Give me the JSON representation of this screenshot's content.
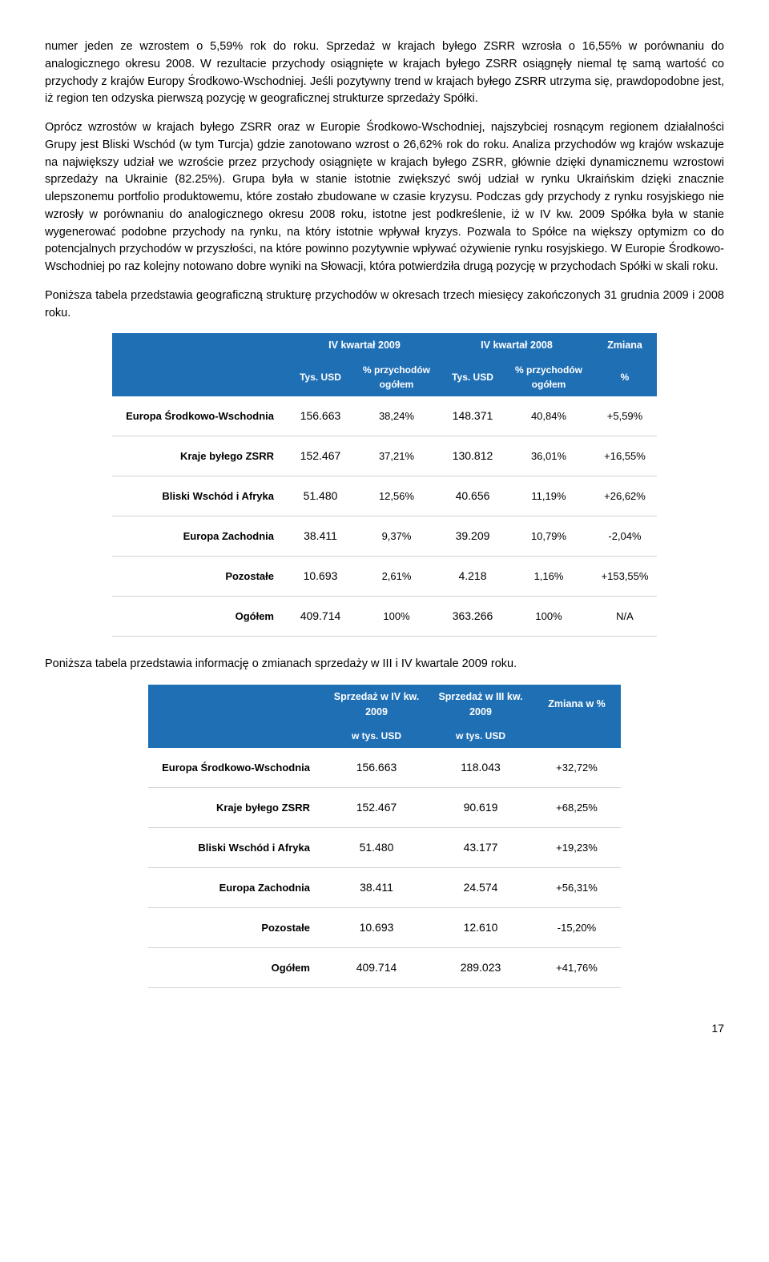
{
  "paragraphs": {
    "p1": "numer jeden ze wzrostem o 5,59% rok do roku. Sprzedaż w krajach byłego ZSRR wzrosła o 16,55% w porównaniu do analogicznego okresu 2008. W rezultacie przychody osiągnięte w krajach byłego ZSRR osiągnęły niemal tę samą wartość co przychody z krajów Europy Środkowo-Wschodniej. Jeśli pozytywny trend w krajach byłego ZSRR utrzyma się, prawdopodobne jest, iż region ten odzyska pierwszą pozycję w geograficznej strukturze sprzedaży Spółki.",
    "p2": "Oprócz wzrostów w krajach byłego ZSRR oraz w Europie Środkowo-Wschodniej, najszybciej rosnącym regionem działalności Grupy jest Bliski Wschód (w tym Turcja) gdzie zanotowano wzrost o 26,62% rok do roku. Analiza przychodów wg krajów wskazuje na największy udział we wzroście przez przychody osiągnięte w krajach byłego ZSRR, głównie dzięki dynamicznemu wzrostowi sprzedaży na Ukrainie (82.25%). Grupa była w stanie istotnie zwiększyć swój udział w rynku Ukraińskim dzięki znacznie ulepszonemu portfolio produktowemu, które zostało zbudowane w czasie kryzysu. Podczas gdy przychody z rynku rosyjskiego nie wzrosły w porównaniu do analogicznego okresu 2008 roku, istotne jest podkreślenie, iż w IV kw. 2009 Spółka była w stanie wygenerować podobne przychody na rynku, na który istotnie wpływał kryzys. Pozwala to Spółce na większy optymizm co do potencjalnych przychodów w przyszłości, na które powinno pozytywnie wpływać ożywienie rynku rosyjskiego. W Europie Środkowo-Wschodniej po raz kolejny notowano dobre wyniki na Słowacji, która potwierdziła drugą pozycję w przychodach Spółki w skali roku.",
    "p3": "Poniższa tabela przedstawia geograficzną strukturę przychodów w okresach trzech miesięcy zakończonych 31 grudnia 2009 i 2008 roku.",
    "p4": "Poniższa tabela przedstawia informację o zmianach sprzedaży w III i IV kwartale 2009 roku."
  },
  "table1": {
    "header_top": {
      "c1": "IV kwartał 2009",
      "c2": "IV kwartał 2008",
      "c3": "Zmiana"
    },
    "header_sub": {
      "tys": "Tys. USD",
      "pct": "% przychodów ogółem",
      "chg": "%"
    },
    "rows": [
      {
        "label": "Europa Środkowo-Wschodnia",
        "a": "156.663",
        "ap": "38,24%",
        "b": "148.371",
        "bp": "40,84%",
        "c": "+5,59%"
      },
      {
        "label": "Kraje byłego ZSRR",
        "a": "152.467",
        "ap": "37,21%",
        "b": "130.812",
        "bp": "36,01%",
        "c": "+16,55%"
      },
      {
        "label": "Bliski Wschód i Afryka",
        "a": "51.480",
        "ap": "12,56%",
        "b": "40.656",
        "bp": "11,19%",
        "c": "+26,62%"
      },
      {
        "label": "Europa Zachodnia",
        "a": "38.411",
        "ap": "9,37%",
        "b": "39.209",
        "bp": "10,79%",
        "c": "-2,04%"
      },
      {
        "label": "Pozostałe",
        "a": "10.693",
        "ap": "2,61%",
        "b": "4.218",
        "bp": "1,16%",
        "c": "+153,55%"
      },
      {
        "label": "Ogółem",
        "a": "409.714",
        "ap": "100%",
        "b": "363.266",
        "bp": "100%",
        "c": "N/A"
      }
    ],
    "col_widths": [
      "220px",
      "80px",
      "110px",
      "80px",
      "110px",
      "80px"
    ],
    "header_bg": "#1f6fb5",
    "header_fg": "#ffffff",
    "row_border": "#d0d6da"
  },
  "table2": {
    "header_top": {
      "c1": "Sprzedaż w IV kw. 2009",
      "c2": "Sprzedaż w III kw. 2009",
      "c3": "Zmiana w %"
    },
    "header_sub": {
      "u": "w tys. USD"
    },
    "rows": [
      {
        "label": "Europa Środkowo-Wschodnia",
        "a": "156.663",
        "b": "118.043",
        "c": "+32,72%"
      },
      {
        "label": "Kraje byłego ZSRR",
        "a": "152.467",
        "b": "90.619",
        "c": "+68,25%"
      },
      {
        "label": "Bliski Wschód i Afryka",
        "a": "51.480",
        "b": "43.177",
        "c": "+19,23%"
      },
      {
        "label": "Europa Zachodnia",
        "a": "38.411",
        "b": "24.574",
        "c": "+56,31%"
      },
      {
        "label": "Pozostałe",
        "a": "10.693",
        "b": "12.610",
        "c": "-15,20%"
      },
      {
        "label": "Ogółem",
        "a": "409.714",
        "b": "289.023",
        "c": "+41,76%"
      }
    ],
    "col_widths": [
      "220px",
      "130px",
      "130px",
      "110px"
    ],
    "header_bg": "#1f6fb5",
    "header_fg": "#ffffff",
    "row_border": "#d0d6da"
  },
  "page_number": "17"
}
